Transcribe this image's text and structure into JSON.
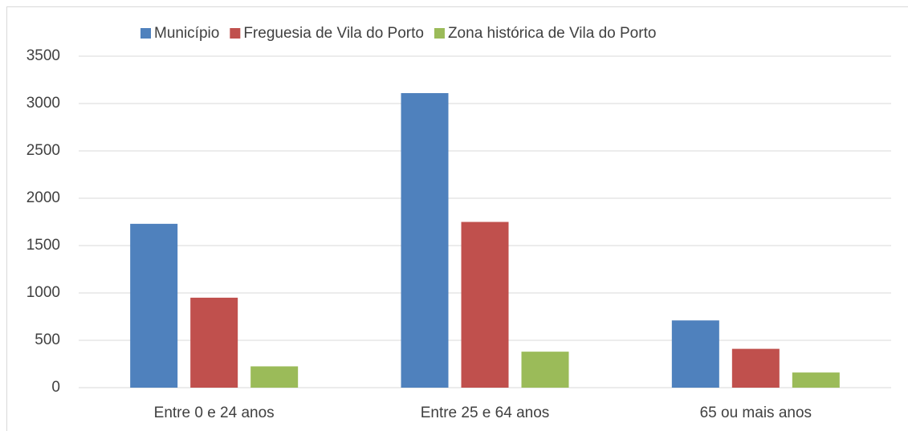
{
  "chart_data": {
    "type": "bar",
    "categories": [
      "Entre 0 e 24 anos",
      "Entre 25 e 64 anos",
      "65 ou mais anos"
    ],
    "series": [
      {
        "name": "Município",
        "color": "#4f81bd",
        "values": [
          1730,
          3110,
          710
        ]
      },
      {
        "name": "Freguesia de Vila do Porto",
        "color": "#c0504d",
        "values": [
          950,
          1750,
          410
        ]
      },
      {
        "name": "Zona histórica de Vila do Porto",
        "color": "#9bbb59",
        "values": [
          225,
          380,
          160
        ]
      }
    ],
    "ylim": [
      0,
      3500
    ],
    "yticks": [
      0,
      500,
      1000,
      1500,
      2000,
      2500,
      3000,
      3500
    ],
    "grid": true,
    "legend": "top"
  }
}
